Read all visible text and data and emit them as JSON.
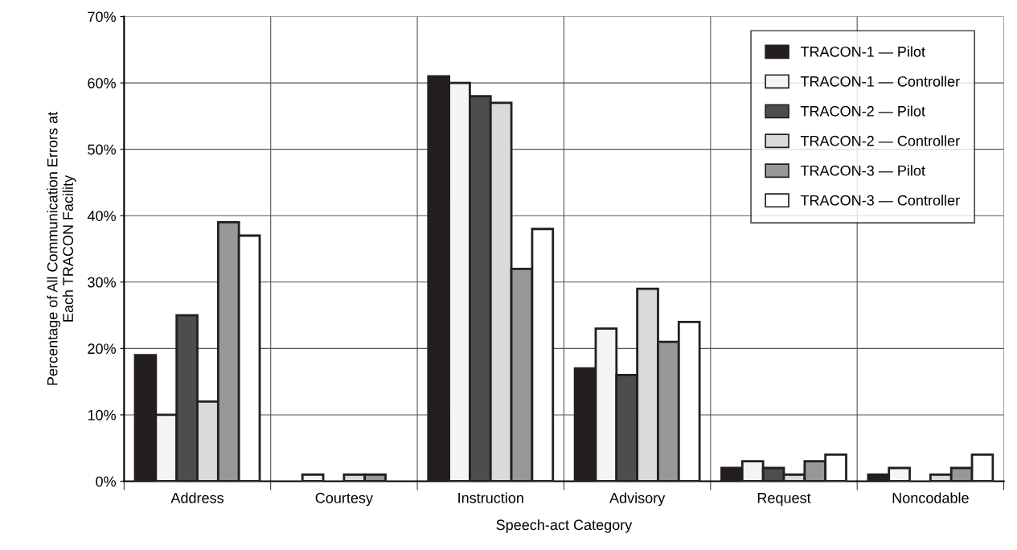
{
  "chart_data": {
    "type": "bar",
    "xlabel": "Speech-act Category",
    "ylabel": "Percentage of All Communication Errors at\nEach TRACON Facility",
    "categories": [
      "Address",
      "Courtesy",
      "Instruction",
      "Advisory",
      "Request",
      "Noncodable"
    ],
    "series": [
      {
        "name": "TRACON-1 — Pilot",
        "color": "#231f20",
        "values": [
          19,
          0,
          61,
          17,
          2,
          1
        ]
      },
      {
        "name": "TRACON-1 — Controller",
        "color": "#f4f4f4",
        "values": [
          10,
          1,
          60,
          23,
          3,
          2
        ]
      },
      {
        "name": "TRACON-2 — Pilot",
        "color": "#4d4d4f",
        "values": [
          25,
          0,
          58,
          16,
          2,
          0
        ]
      },
      {
        "name": "TRACON-2 — Controller",
        "color": "#d9dadb",
        "values": [
          12,
          1,
          57,
          29,
          1,
          1
        ]
      },
      {
        "name": "TRACON-3 — Pilot",
        "color": "#96989a",
        "values": [
          39,
          1,
          32,
          21,
          3,
          2
        ]
      },
      {
        "name": "TRACON-3 — Controller",
        "color": "#ffffff",
        "values": [
          37,
          0,
          38,
          24,
          4,
          4
        ]
      }
    ],
    "ylim": [
      0,
      70
    ],
    "yticks": [
      {
        "value": 0,
        "label": "0%"
      },
      {
        "value": 10,
        "label": "10%"
      },
      {
        "value": 20,
        "label": "20%"
      },
      {
        "value": 30,
        "label": "30%"
      },
      {
        "value": 40,
        "label": "40%"
      },
      {
        "value": 50,
        "label": "50%"
      },
      {
        "value": 60,
        "label": "60%"
      },
      {
        "value": 70,
        "label": "70%"
      }
    ],
    "grid": true,
    "legend": "top right"
  }
}
